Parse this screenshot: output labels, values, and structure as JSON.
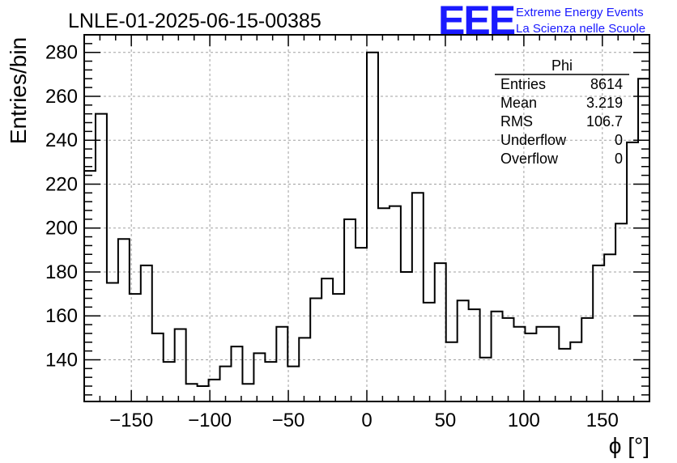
{
  "chart_data": {
    "type": "histogram",
    "title": "LNLE-01-2025-06-15-00385",
    "xlabel": "ϕ [°]",
    "ylabel": "Entries/bin",
    "xlim": [
      -180,
      180
    ],
    "ylim": [
      121,
      288
    ],
    "xticks": [
      -150,
      -100,
      -50,
      0,
      50,
      100,
      150
    ],
    "xtick_labels": [
      "−150",
      "−100",
      "−50",
      "0",
      "50",
      "100",
      "150"
    ],
    "yticks": [
      140,
      160,
      180,
      200,
      220,
      240,
      260,
      280
    ],
    "ytick_labels": [
      "140",
      "160",
      "180",
      "200",
      "220",
      "240",
      "260",
      "280"
    ],
    "grid": true,
    "bin_width": 7.2,
    "bin_low": -180,
    "values": [
      226,
      252,
      175,
      195,
      170,
      183,
      152,
      139,
      154,
      129,
      128,
      131,
      137,
      146,
      129,
      143,
      139,
      155,
      137,
      150,
      168,
      177,
      170,
      204,
      191,
      280,
      209,
      210,
      180,
      216,
      166,
      184,
      148,
      167,
      163,
      141,
      162,
      159,
      155,
      152,
      155,
      155,
      145,
      148,
      159,
      183,
      188,
      202,
      239,
      268
    ],
    "stats_box": {
      "name": "Phi",
      "rows": [
        {
          "label": "Entries",
          "value": "8614"
        },
        {
          "label": "Mean",
          "value": "3.219"
        },
        {
          "label": "RMS",
          "value": "106.7"
        },
        {
          "label": "Underflow",
          "value": "0"
        },
        {
          "label": "Overflow",
          "value": "0"
        }
      ]
    },
    "line_color": "#000000"
  },
  "logo": {
    "mark": "EEE",
    "line1": "Extreme Energy Events",
    "line2": "La Scienza nelle Scuole",
    "color": "#1a1aff"
  }
}
